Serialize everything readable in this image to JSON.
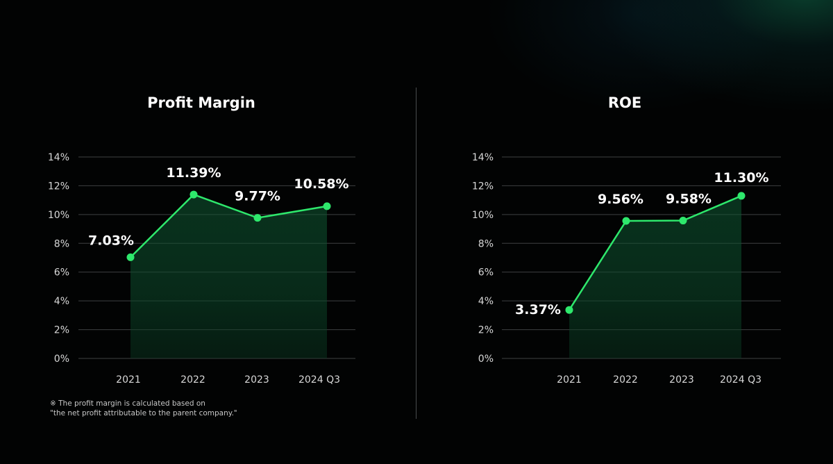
{
  "colors": {
    "background": "#020303",
    "line": "#2ee86c",
    "marker": "#2ee86c",
    "grid": "#3e4042",
    "axis_text": "#d8d8d8",
    "label_text": "#ffffff"
  },
  "chart_data": [
    {
      "type": "line",
      "title": "Profit Margin",
      "categories": [
        "2021",
        "2022",
        "2023",
        "2024 Q3"
      ],
      "values": [
        7.03,
        11.39,
        9.77,
        10.58
      ],
      "data_labels": [
        "7.03%",
        "11.39%",
        "9.77%",
        "10.58%"
      ],
      "ylim": [
        0,
        14
      ],
      "yticks": [
        "0%",
        "2%",
        "4%",
        "6%",
        "8%",
        "10%",
        "12%",
        "14%"
      ],
      "xlabel": "",
      "ylabel": "",
      "grid": true,
      "area_fill": true
    },
    {
      "type": "line",
      "title": "ROE",
      "categories": [
        "2021",
        "2022",
        "2023",
        "2024 Q3"
      ],
      "values": [
        3.37,
        9.56,
        9.58,
        11.3
      ],
      "data_labels": [
        "3.37%",
        "9.56%",
        "9.58%",
        "11.30%"
      ],
      "ylim": [
        0,
        14
      ],
      "yticks": [
        "0%",
        "2%",
        "4%",
        "6%",
        "8%",
        "10%",
        "12%",
        "14%"
      ],
      "xlabel": "",
      "ylabel": "",
      "grid": true,
      "area_fill": true
    }
  ],
  "footnote": {
    "line1": "※ The profit margin is calculated based on",
    "line2": "\"the net profit attributable to the parent company.\""
  }
}
